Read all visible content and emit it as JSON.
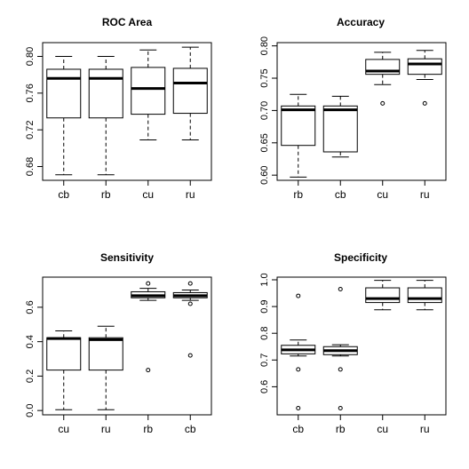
{
  "chart_data": [
    {
      "type": "boxplot",
      "title": "ROC Area",
      "categories": [
        "cb",
        "rb",
        "cu",
        "ru"
      ],
      "ylim": [
        0.665,
        0.815
      ],
      "yticks": [
        0.68,
        0.72,
        0.76,
        0.8
      ],
      "ytick_labels": [
        "0.68",
        "0.72",
        "0.76",
        "0.80"
      ],
      "boxes": [
        {
          "whisker_low": 0.671,
          "q1": 0.733,
          "median": 0.776,
          "q3": 0.786,
          "whisker_high": 0.8,
          "outliers": []
        },
        {
          "whisker_low": 0.671,
          "q1": 0.733,
          "median": 0.776,
          "q3": 0.786,
          "whisker_high": 0.8,
          "outliers": []
        },
        {
          "whisker_low": 0.709,
          "q1": 0.737,
          "median": 0.765,
          "q3": 0.788,
          "whisker_high": 0.807,
          "outliers": []
        },
        {
          "whisker_low": 0.709,
          "q1": 0.738,
          "median": 0.771,
          "q3": 0.787,
          "whisker_high": 0.81,
          "outliers": []
        }
      ]
    },
    {
      "type": "boxplot",
      "title": "Accuracy",
      "categories": [
        "rb",
        "cb",
        "cu",
        "ru"
      ],
      "ylim": [
        0.592,
        0.805
      ],
      "yticks": [
        0.6,
        0.65,
        0.7,
        0.75,
        0.8
      ],
      "ytick_labels": [
        "0.60",
        "0.65",
        "0.70",
        "0.75",
        "0.80"
      ],
      "boxes": [
        {
          "whisker_low": 0.597,
          "q1": 0.646,
          "median": 0.701,
          "q3": 0.707,
          "whisker_high": 0.725,
          "outliers": []
        },
        {
          "whisker_low": 0.628,
          "q1": 0.636,
          "median": 0.701,
          "q3": 0.707,
          "whisker_high": 0.722,
          "outliers": []
        },
        {
          "whisker_low": 0.74,
          "q1": 0.756,
          "median": 0.761,
          "q3": 0.779,
          "whisker_high": 0.79,
          "outliers": [
            0.711
          ]
        },
        {
          "whisker_low": 0.748,
          "q1": 0.756,
          "median": 0.772,
          "q3": 0.78,
          "whisker_high": 0.793,
          "outliers": [
            0.711
          ]
        }
      ]
    },
    {
      "type": "boxplot",
      "title": "Sensitivity",
      "categories": [
        "cu",
        "ru",
        "rb",
        "cb"
      ],
      "ylim": [
        -0.025,
        0.775
      ],
      "yticks": [
        0.0,
        0.2,
        0.4,
        0.6
      ],
      "ytick_labels": [
        "0.0",
        "0.2",
        "0.4",
        "0.6"
      ],
      "boxes": [
        {
          "whisker_low": 0.005,
          "q1": 0.235,
          "median": 0.418,
          "q3": 0.423,
          "whisker_high": 0.463,
          "outliers": []
        },
        {
          "whisker_low": 0.005,
          "q1": 0.235,
          "median": 0.412,
          "q3": 0.423,
          "whisker_high": 0.49,
          "outliers": []
        },
        {
          "whisker_low": 0.64,
          "q1": 0.655,
          "median": 0.667,
          "q3": 0.69,
          "whisker_high": 0.71,
          "outliers": [
            0.235,
            0.738
          ]
        },
        {
          "whisker_low": 0.64,
          "q1": 0.655,
          "median": 0.667,
          "q3": 0.685,
          "whisker_high": 0.7,
          "outliers": [
            0.62,
            0.32,
            0.738
          ]
        }
      ]
    },
    {
      "type": "boxplot",
      "title": "Specificity",
      "categories": [
        "cb",
        "rb",
        "cu",
        "ru"
      ],
      "ylim": [
        0.495,
        1.01
      ],
      "yticks": [
        0.6,
        0.7,
        0.8,
        0.9,
        1.0
      ],
      "ytick_labels": [
        "0.6",
        "0.7",
        "0.8",
        "0.9",
        "1.0"
      ],
      "boxes": [
        {
          "whisker_low": 0.715,
          "q1": 0.723,
          "median": 0.738,
          "q3": 0.755,
          "whisker_high": 0.775,
          "outliers": [
            0.94,
            0.665,
            0.52
          ]
        },
        {
          "whisker_low": 0.715,
          "q1": 0.72,
          "median": 0.735,
          "q3": 0.75,
          "whisker_high": 0.757,
          "outliers": [
            0.965,
            0.665,
            0.52
          ]
        },
        {
          "whisker_low": 0.888,
          "q1": 0.915,
          "median": 0.93,
          "q3": 0.97,
          "whisker_high": 0.998,
          "outliers": []
        },
        {
          "whisker_low": 0.888,
          "q1": 0.915,
          "median": 0.93,
          "q3": 0.97,
          "whisker_high": 0.998,
          "outliers": []
        }
      ]
    }
  ]
}
